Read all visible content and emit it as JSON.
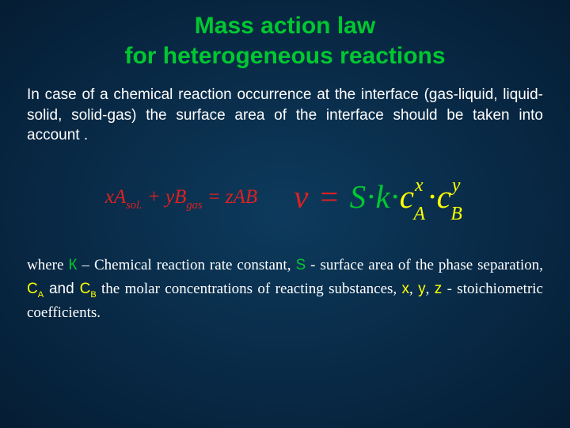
{
  "colors": {
    "title": "#00c830",
    "body_white": "#ffffff",
    "eq_red": "#e02020",
    "eq_green": "#00c830",
    "eq_yellow": "#ffff00",
    "sym_green": "#00c830",
    "sym_yellow": "#ffff00"
  },
  "title": {
    "line1": "Mass action law",
    "line2": "for heterogeneous reactions"
  },
  "intro": "In case of a chemical reaction occurrence at the interface (gas-liquid, liquid-solid, solid-gas) the surface area of the interface should be taken into account .",
  "eq1": {
    "t1": "xA",
    "sub1": "sol.",
    "t2": " + yB",
    "sub2": "gas",
    "t3": " = zAB"
  },
  "eq2": {
    "nu": "ν",
    "eq": " = ",
    "S": "S",
    "dot1": "·",
    "k": "k",
    "dot2": "·",
    "cA_c": "c",
    "cA_sup": "x",
    "cA_sub": "A",
    "dot3": "·",
    "cB_c": "c",
    "cB_sup": "y",
    "cB_sub": "B"
  },
  "explain": {
    "p1": "where ",
    "k": "К",
    "p2": " – Chemical reaction rate constant, ",
    "s": "S",
    "p3": " - surface area of the phase separation, ",
    "ca": "С",
    "ca_sub": "А",
    "and": " and ",
    "cb": "С",
    "cb_sub": "В",
    "p4": " the molar concentrations of reacting substances, ",
    "x": "x",
    "c1": ", ",
    "y": "y",
    "c2": ", ",
    "z": "z",
    "p5": " - stoichiometric coefficients."
  }
}
